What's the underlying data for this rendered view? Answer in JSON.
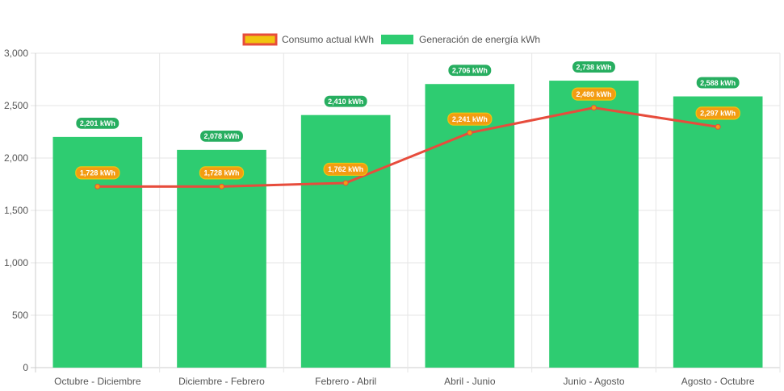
{
  "chart_data": {
    "type": "bar",
    "categories": [
      "Octubre - Diciembre",
      "Diciembre - Febrero",
      "Febrero - Abril",
      "Abril - Junio",
      "Junio - Agosto",
      "Agosto - Octubre"
    ],
    "series": [
      {
        "name": "Consumo actual kWh",
        "type": "line",
        "values": [
          1728,
          1728,
          1762,
          2241,
          2480,
          2297
        ],
        "labels": [
          "1,728 kWh",
          "1,728 kWh",
          "1,762 kWh",
          "2,241 kWh",
          "2,480 kWh",
          "2,297 kWh"
        ],
        "color": "#e74c3c",
        "fill": "#f1c40f",
        "label_bg": "#f39c12"
      },
      {
        "name": "Generación de energía kWh",
        "type": "bar",
        "values": [
          2201,
          2078,
          2410,
          2706,
          2738,
          2588
        ],
        "labels": [
          "2,201 kWh",
          "2,078 kWh",
          "2,410 kWh",
          "2,706 kWh",
          "2,738 kWh",
          "2,588 kWh"
        ],
        "color": "#2ecc71",
        "label_bg": "#27ae60"
      }
    ],
    "ylim": [
      0,
      3000
    ],
    "yticks": [
      0,
      500,
      1000,
      1500,
      2000,
      2500,
      3000
    ],
    "ytick_labels": [
      "0",
      "500",
      "1,000",
      "1,500",
      "2,000",
      "2,500",
      "3,000"
    ],
    "legend": "top-center",
    "grid": true,
    "title": "",
    "xlabel": "",
    "ylabel": ""
  }
}
